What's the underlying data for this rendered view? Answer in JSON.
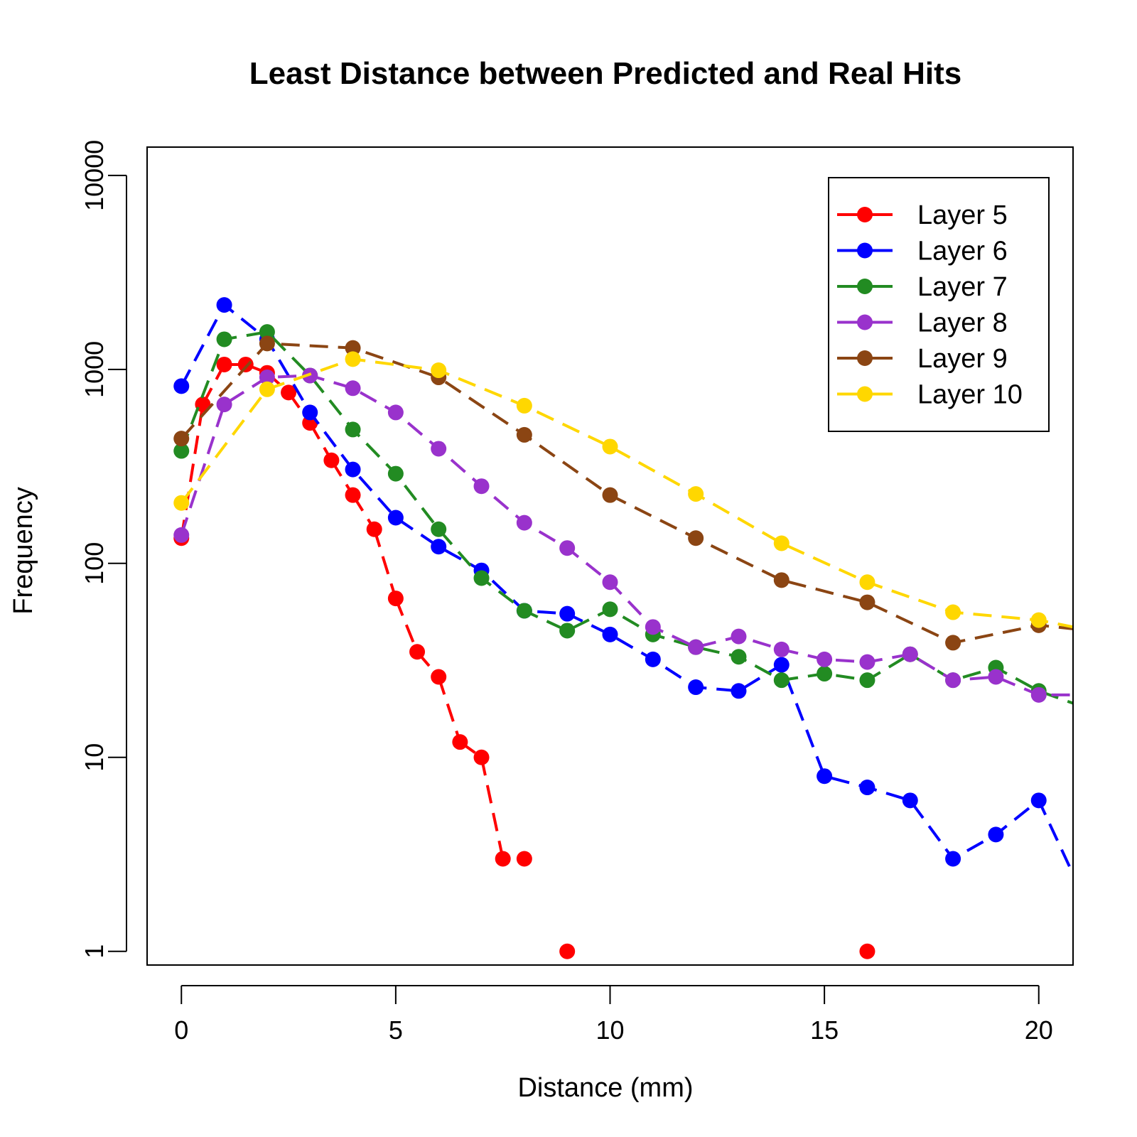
{
  "chart_data": {
    "type": "line",
    "title": "Least Distance between Predicted and Real Hits",
    "xlabel": "Distance (mm)",
    "ylabel": "Frequency",
    "xlim": [
      -0.8,
      20.8
    ],
    "ylim": [
      0.85,
      14000
    ],
    "yscale": "log",
    "x_ticks": [
      0,
      5,
      10,
      15,
      20
    ],
    "x_tick_labels": [
      "0",
      "5",
      "10",
      "15",
      "20"
    ],
    "y_ticks": [
      1,
      10,
      100,
      1000,
      10000
    ],
    "y_tick_labels": [
      "1",
      "10",
      "100",
      "1000",
      "10000"
    ],
    "grid": false,
    "legend_position": "top-right",
    "series": [
      {
        "name": "Layer 5",
        "color": "#FF0000",
        "dash": "dash",
        "points": [
          [
            0,
            135
          ],
          [
            0.5,
            660
          ],
          [
            1,
            1060
          ],
          [
            1.5,
            1060
          ],
          [
            2,
            960
          ],
          [
            2.5,
            760
          ],
          [
            3,
            530
          ],
          [
            3.5,
            340
          ],
          [
            4,
            225
          ],
          [
            4.5,
            150
          ],
          [
            5,
            66
          ],
          [
            5.5,
            35
          ],
          [
            6,
            26
          ],
          [
            6.5,
            12
          ],
          [
            7,
            10
          ],
          [
            7.5,
            3
          ],
          [
            8,
            3
          ],
          [
            9,
            1
          ],
          [
            16,
            1
          ]
        ],
        "segment_pairs": [
          [
            0,
            1
          ],
          [
            1,
            2
          ],
          [
            2,
            3
          ],
          [
            3,
            4
          ],
          [
            4,
            5
          ],
          [
            5,
            6
          ],
          [
            6,
            7
          ],
          [
            7,
            8
          ],
          [
            8,
            9
          ],
          [
            9,
            10
          ],
          [
            10,
            11
          ],
          [
            11,
            12
          ],
          [
            12,
            13
          ],
          [
            13,
            14
          ],
          [
            14,
            15
          ]
        ]
      },
      {
        "name": "Layer 6",
        "color": "#0000FF",
        "dash": "dash",
        "points": [
          [
            0,
            820
          ],
          [
            1,
            2150
          ],
          [
            2,
            1430
          ],
          [
            3,
            600
          ],
          [
            4,
            305
          ],
          [
            5,
            172
          ],
          [
            6,
            122
          ],
          [
            7,
            92
          ],
          [
            8,
            57
          ],
          [
            9,
            55
          ],
          [
            10,
            43
          ],
          [
            11,
            32
          ],
          [
            12,
            23
          ],
          [
            13,
            22
          ],
          [
            14,
            30
          ],
          [
            15,
            8
          ],
          [
            16,
            7
          ],
          [
            17,
            6
          ],
          [
            18,
            3
          ],
          [
            19,
            4
          ],
          [
            20,
            6
          ],
          [
            20.8,
            2.5
          ]
        ]
      },
      {
        "name": "Layer 7",
        "color": "#228B22",
        "dash": "dash",
        "points": [
          [
            0,
            380
          ],
          [
            1,
            1430
          ],
          [
            2,
            1560
          ],
          [
            3,
            930
          ],
          [
            4,
            490
          ],
          [
            5,
            290
          ],
          [
            6,
            150
          ],
          [
            7,
            84
          ],
          [
            8,
            57
          ],
          [
            9,
            45
          ],
          [
            10,
            58
          ],
          [
            11,
            43
          ],
          [
            12,
            37
          ],
          [
            13,
            33
          ],
          [
            14,
            25
          ],
          [
            15,
            27
          ],
          [
            16,
            25
          ],
          [
            17,
            34
          ],
          [
            18,
            25
          ],
          [
            19,
            29
          ],
          [
            20,
            22
          ],
          [
            20.8,
            19
          ]
        ]
      },
      {
        "name": "Layer 8",
        "color": "#9932CC",
        "dash": "dash",
        "points": [
          [
            0,
            140
          ],
          [
            1,
            660
          ],
          [
            2,
            910
          ],
          [
            3,
            930
          ],
          [
            4,
            800
          ],
          [
            5,
            600
          ],
          [
            6,
            390
          ],
          [
            7,
            250
          ],
          [
            8,
            162
          ],
          [
            9,
            120
          ],
          [
            10,
            80
          ],
          [
            11,
            47
          ],
          [
            12,
            37
          ],
          [
            13,
            42
          ],
          [
            14,
            36
          ],
          [
            15,
            32
          ],
          [
            16,
            31
          ],
          [
            17,
            34
          ],
          [
            18,
            25
          ],
          [
            19,
            26
          ],
          [
            20,
            21
          ],
          [
            20.8,
            21
          ]
        ]
      },
      {
        "name": "Layer 9",
        "color": "#8B4513",
        "dash": "dash",
        "points": [
          [
            0,
            440
          ],
          [
            2,
            1360
          ],
          [
            4,
            1290
          ],
          [
            6,
            910
          ],
          [
            8,
            460
          ],
          [
            10,
            225
          ],
          [
            12,
            135
          ],
          [
            14,
            82
          ],
          [
            16,
            63
          ],
          [
            18,
            39
          ],
          [
            20,
            48
          ],
          [
            20.8,
            46
          ]
        ]
      },
      {
        "name": "Layer 10",
        "color": "#FFD700",
        "dash": "dash",
        "points": [
          [
            0,
            205
          ],
          [
            2,
            790
          ],
          [
            4,
            1130
          ],
          [
            6,
            990
          ],
          [
            8,
            650
          ],
          [
            10,
            400
          ],
          [
            12,
            228
          ],
          [
            14,
            127
          ],
          [
            16,
            80
          ],
          [
            18,
            56
          ],
          [
            20,
            51
          ],
          [
            20.8,
            47
          ]
        ]
      }
    ]
  }
}
